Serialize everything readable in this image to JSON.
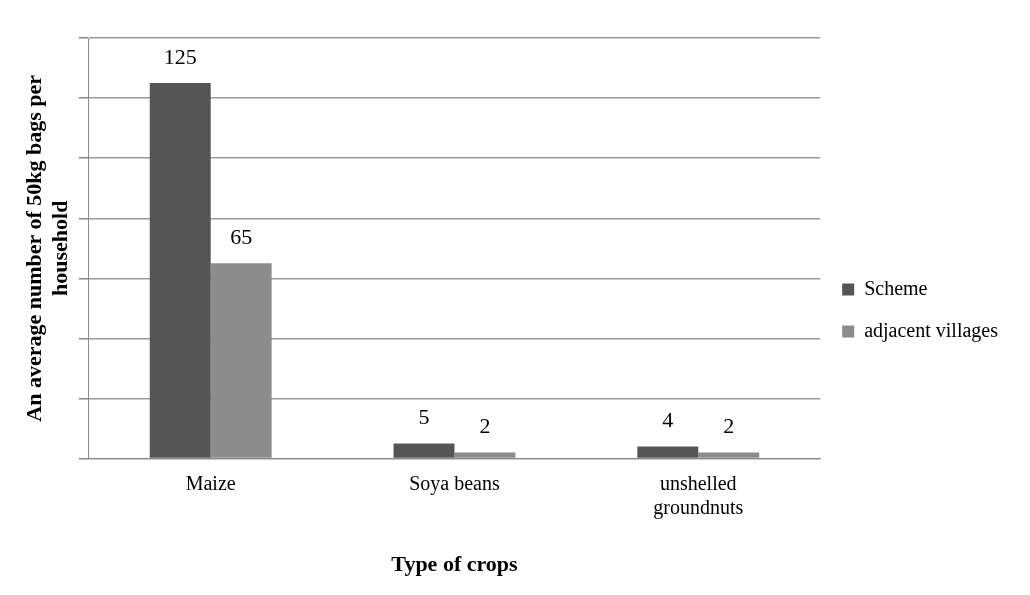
{
  "chart_data": {
    "type": "bar",
    "xlabel": "Type of crops",
    "ylabel": "An average number of 50kg bags per household",
    "categories": [
      "Maize",
      "Soya beans",
      "unshelled groundnuts"
    ],
    "series": [
      {
        "name": "Scheme",
        "color": "#555555",
        "values": [
          125,
          5,
          4
        ]
      },
      {
        "name": "adjacent villages",
        "color": "#8c8c8c",
        "values": [
          65,
          2,
          2
        ]
      }
    ],
    "ylim": [
      0,
      140
    ],
    "yticks": [
      {
        "value": 0,
        "label": null
      },
      {
        "value": 20,
        "label": null
      },
      {
        "value": 40,
        "label": null
      },
      {
        "value": 60,
        "label": null
      },
      {
        "value": 80,
        "label": null
      },
      {
        "value": 100,
        "label": null
      },
      {
        "value": 120,
        "label": null
      },
      {
        "value": 140,
        "label": null
      }
    ],
    "tick_labels": "x",
    "grid": "y",
    "legend": "right",
    "data_labels": true
  }
}
